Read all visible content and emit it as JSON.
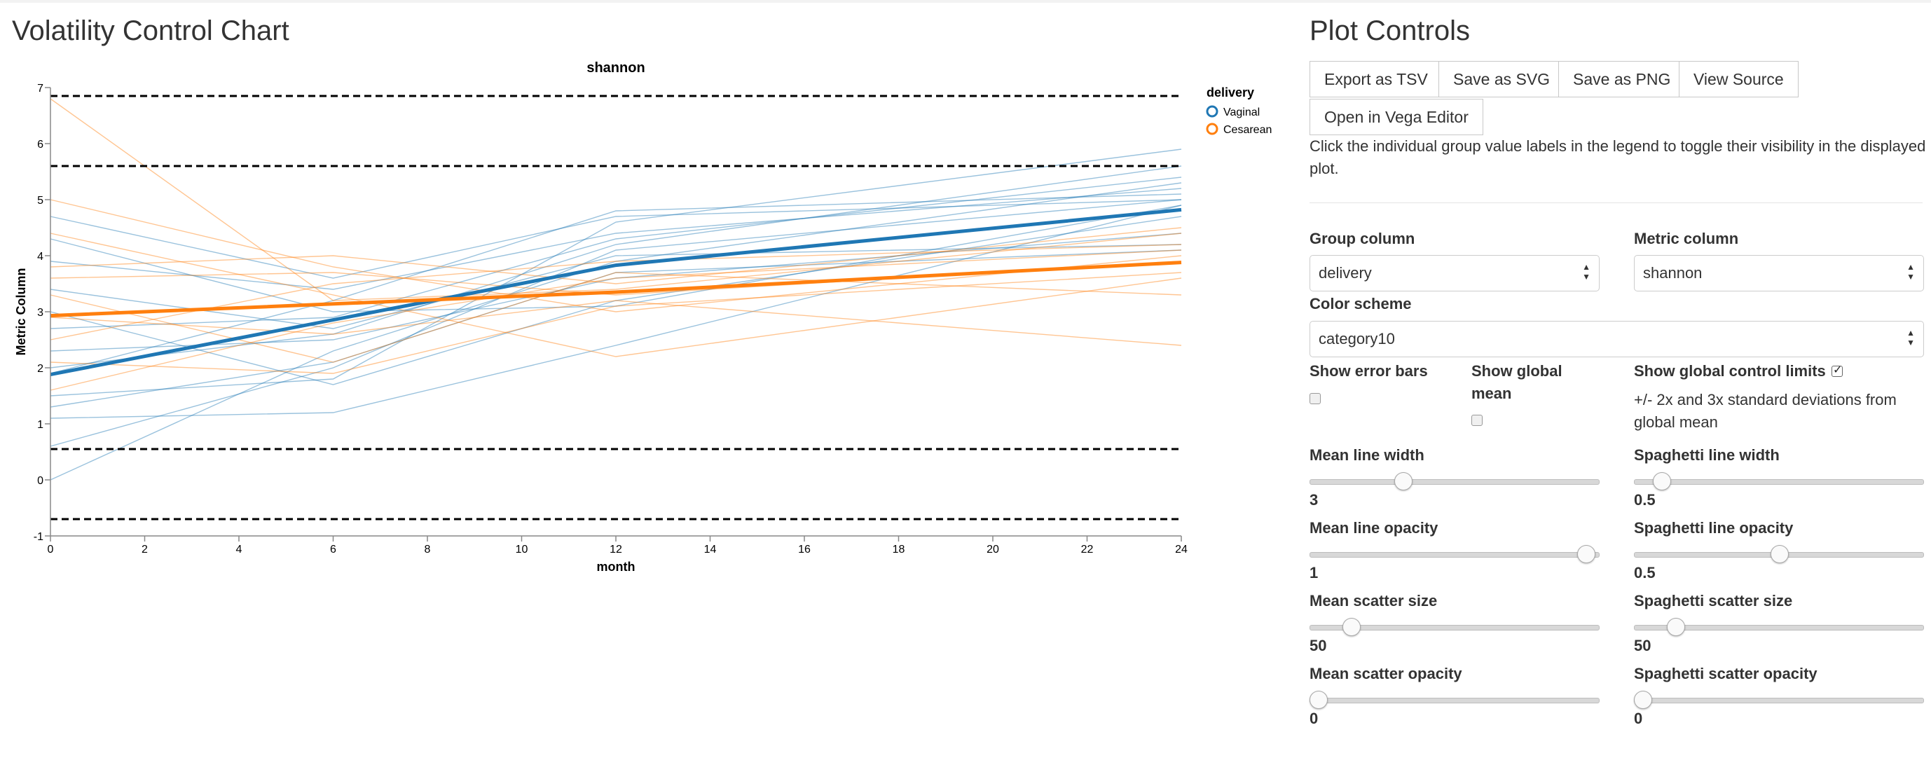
{
  "page": {
    "title": "Volatility Control Chart",
    "controls_title": "Plot Controls"
  },
  "buttons": {
    "export_tsv": "Export as TSV",
    "save_svg": "Save as SVG",
    "save_png": "Save as PNG",
    "view_source": "View Source",
    "open_vega": "Open in Vega Editor"
  },
  "help_text": "Click the individual group value labels in the legend to toggle their visibility in the displayed plot.",
  "controls": {
    "group_column": {
      "label": "Group column",
      "value": "delivery"
    },
    "metric_column": {
      "label": "Metric column",
      "value": "shannon"
    },
    "color_scheme": {
      "label": "Color scheme",
      "value": "category10"
    },
    "show_error_bars": {
      "label": "Show error bars",
      "checked": false
    },
    "show_global_mean": {
      "label": "Show global mean",
      "checked": false
    },
    "show_global_control_limits": {
      "label": "Show global control limits",
      "checked": true,
      "note": "+/- 2x and 3x standard deviations from global mean"
    },
    "mean_line_width": {
      "label": "Mean line width",
      "value": "3",
      "fraction": 0.31
    },
    "spaghetti_line_width": {
      "label": "Spaghetti line width",
      "value": "0.5",
      "fraction": 0.07
    },
    "mean_line_opacity": {
      "label": "Mean line opacity",
      "value": "1",
      "fraction": 0.98
    },
    "spaghetti_line_opacity": {
      "label": "Spaghetti line opacity",
      "value": "0.5",
      "fraction": 0.5
    },
    "mean_scatter_size": {
      "label": "Mean scatter size",
      "value": "50",
      "fraction": 0.12
    },
    "spaghetti_scatter_size": {
      "label": "Spaghetti scatter size",
      "value": "50",
      "fraction": 0.12
    },
    "mean_scatter_opacity": {
      "label": "Mean scatter opacity",
      "value": "0",
      "fraction": 0.0
    },
    "spaghetti_scatter_opacity": {
      "label": "Spaghetti scatter opacity",
      "value": "0",
      "fraction": 0.0
    }
  },
  "colors": {
    "vaginal": "#1f77b4",
    "cesarean": "#ff7f0e",
    "control_limit": "#000000"
  },
  "chart_data": {
    "type": "line",
    "title": "shannon",
    "xlabel": "month",
    "ylabel": "Metric Column",
    "xlim": [
      0,
      24
    ],
    "ylim": [
      -1,
      7
    ],
    "xticks": [
      "0",
      "2",
      "4",
      "6",
      "8",
      "10",
      "12",
      "14",
      "16",
      "18",
      "20",
      "22",
      "24"
    ],
    "yticks": [
      "-1",
      "0",
      "1",
      "2",
      "3",
      "4",
      "5",
      "6",
      "7"
    ],
    "legend": {
      "title": "delivery",
      "placement": "right"
    },
    "control_limits": [
      6.85,
      5.6,
      0.55,
      -0.7
    ],
    "series": [
      {
        "name": "Vaginal",
        "x": [
          0,
          12,
          24
        ],
        "values": [
          1.88,
          3.83,
          4.82
        ]
      },
      {
        "name": "Cesarean",
        "x": [
          0,
          12,
          24
        ],
        "values": [
          2.93,
          3.35,
          3.88
        ]
      }
    ],
    "spaghetti": [
      {
        "group": "Vaginal",
        "x": [
          0,
          6,
          12,
          24
        ],
        "values": [
          0.0,
          2.3,
          3.9,
          5.3
        ]
      },
      {
        "group": "Vaginal",
        "x": [
          0,
          6,
          12,
          24
        ],
        "values": [
          0.6,
          2.0,
          4.1,
          5.0
        ]
      },
      {
        "group": "Vaginal",
        "x": [
          0,
          6,
          12,
          24
        ],
        "values": [
          1.1,
          1.2,
          2.4,
          4.9
        ]
      },
      {
        "group": "Vaginal",
        "x": [
          0,
          6,
          12,
          24
        ],
        "values": [
          1.5,
          1.8,
          4.6,
          5.9
        ]
      },
      {
        "group": "Vaginal",
        "x": [
          0,
          6,
          12,
          24
        ],
        "values": [
          1.9,
          3.2,
          4.8,
          5.1
        ]
      },
      {
        "group": "Vaginal",
        "x": [
          0,
          6,
          12,
          24
        ],
        "values": [
          2.3,
          2.5,
          3.6,
          4.4
        ]
      },
      {
        "group": "Vaginal",
        "x": [
          0,
          6,
          12,
          24
        ],
        "values": [
          2.7,
          2.9,
          4.3,
          5.4
        ]
      },
      {
        "group": "Vaginal",
        "x": [
          0,
          6,
          12,
          24
        ],
        "values": [
          3.0,
          1.7,
          3.2,
          4.7
        ]
      },
      {
        "group": "Vaginal",
        "x": [
          0,
          6,
          12,
          24
        ],
        "values": [
          3.4,
          2.7,
          4.0,
          4.2
        ]
      },
      {
        "group": "Vaginal",
        "x": [
          0,
          6,
          12,
          24
        ],
        "values": [
          3.9,
          3.4,
          4.4,
          5.2
        ]
      },
      {
        "group": "Vaginal",
        "x": [
          0,
          6,
          12,
          24
        ],
        "values": [
          4.3,
          3.0,
          3.1,
          4.9
        ]
      },
      {
        "group": "Vaginal",
        "x": [
          0,
          6,
          12,
          24
        ],
        "values": [
          4.7,
          3.6,
          4.7,
          5.0
        ]
      },
      {
        "group": "Vaginal",
        "x": [
          0,
          6,
          12,
          24
        ],
        "values": [
          1.3,
          2.1,
          3.7,
          4.1
        ]
      },
      {
        "group": "Vaginal",
        "x": [
          0,
          6,
          12,
          24
        ],
        "values": [
          2.0,
          2.6,
          4.2,
          5.6
        ]
      },
      {
        "group": "Cesarean",
        "x": [
          0,
          6,
          12,
          24
        ],
        "values": [
          6.8,
          3.2,
          3.4,
          4.4
        ]
      },
      {
        "group": "Cesarean",
        "x": [
          0,
          6,
          12,
          24
        ],
        "values": [
          5.0,
          3.8,
          3.0,
          4.0
        ]
      },
      {
        "group": "Cesarean",
        "x": [
          0,
          6,
          12,
          24
        ],
        "values": [
          4.4,
          3.3,
          2.2,
          3.6
        ]
      },
      {
        "group": "Cesarean",
        "x": [
          0,
          6,
          12,
          24
        ],
        "values": [
          3.8,
          4.0,
          3.5,
          4.5
        ]
      },
      {
        "group": "Cesarean",
        "x": [
          0,
          6,
          12,
          24
        ],
        "values": [
          3.3,
          2.1,
          3.7,
          3.3
        ]
      },
      {
        "group": "Cesarean",
        "x": [
          0,
          6,
          12,
          24
        ],
        "values": [
          2.9,
          2.6,
          3.2,
          2.4
        ]
      },
      {
        "group": "Cesarean",
        "x": [
          0,
          6,
          12,
          24
        ],
        "values": [
          2.5,
          3.5,
          3.9,
          4.2
        ]
      },
      {
        "group": "Cesarean",
        "x": [
          0,
          6,
          12,
          24
        ],
        "values": [
          2.1,
          1.9,
          3.1,
          3.7
        ]
      },
      {
        "group": "Cesarean",
        "x": [
          0,
          6,
          12,
          24
        ],
        "values": [
          1.6,
          2.8,
          3.6,
          4.1
        ]
      },
      {
        "group": "Cesarean",
        "x": [
          0,
          6,
          12,
          24
        ],
        "values": [
          3.6,
          3.7,
          3.3,
          3.9
        ]
      }
    ]
  }
}
